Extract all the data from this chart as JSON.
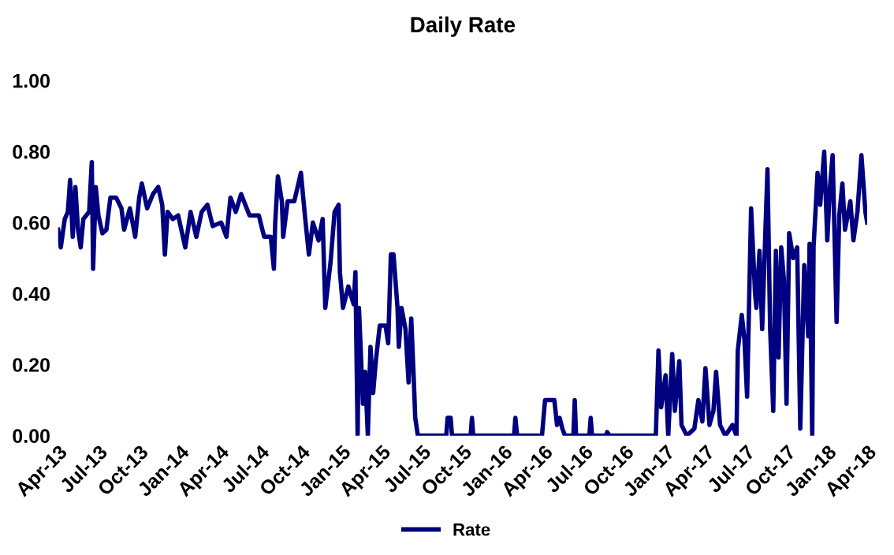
{
  "chart_data": {
    "type": "line",
    "title": "Daily Rate",
    "x": [
      "2013-04-01",
      "2013-04-07",
      "2013-04-16",
      "2013-04-23",
      "2013-04-28",
      "2013-05-04",
      "2013-05-10",
      "2013-05-16",
      "2013-05-22",
      "2013-05-28",
      "2013-06-10",
      "2013-06-16",
      "2013-06-19",
      "2013-06-25",
      "2013-07-01",
      "2013-07-10",
      "2013-07-19",
      "2013-07-28",
      "2013-08-10",
      "2013-08-22",
      "2013-08-28",
      "2013-09-10",
      "2013-09-22",
      "2013-10-01",
      "2013-10-07",
      "2013-10-19",
      "2013-11-01",
      "2013-11-13",
      "2013-11-22",
      "2013-11-28",
      "2013-12-04",
      "2013-12-16",
      "2013-12-28",
      "2014-01-13",
      "2014-01-25",
      "2014-02-07",
      "2014-02-19",
      "2014-03-04",
      "2014-03-16",
      "2014-04-04",
      "2014-04-16",
      "2014-04-25",
      "2014-05-07",
      "2014-05-19",
      "2014-06-07",
      "2014-06-28",
      "2014-07-10",
      "2014-07-25",
      "2014-08-01",
      "2014-08-04",
      "2014-08-10",
      "2014-08-19",
      "2014-08-22",
      "2014-09-01",
      "2014-09-16",
      "2014-10-01",
      "2014-10-10",
      "2014-10-19",
      "2014-10-28",
      "2014-11-10",
      "2014-11-19",
      "2014-11-25",
      "2014-12-07",
      "2014-12-16",
      "2014-12-25",
      "2014-12-28",
      "2015-01-04",
      "2015-01-16",
      "2015-01-28",
      "2015-02-01",
      "2015-02-06",
      "2015-02-09",
      "2015-02-18",
      "2015-02-23",
      "2015-03-01",
      "2015-03-07",
      "2015-03-13",
      "2015-03-19",
      "2015-03-28",
      "2015-04-10",
      "2015-04-16",
      "2015-04-22",
      "2015-04-28",
      "2015-05-07",
      "2015-05-10",
      "2015-05-16",
      "2015-05-25",
      "2015-06-01",
      "2015-06-07",
      "2015-06-13",
      "2015-06-16",
      "2015-06-22",
      "2015-08-25",
      "2015-08-28",
      "2015-09-04",
      "2015-09-07",
      "2015-10-19",
      "2015-10-22",
      "2015-10-25",
      "2016-01-25",
      "2016-01-28",
      "2016-02-01",
      "2016-03-28",
      "2016-04-04",
      "2016-04-25",
      "2016-05-01",
      "2016-05-07",
      "2016-05-13",
      "2016-05-19",
      "2016-06-07",
      "2016-06-10",
      "2016-06-13",
      "2016-07-13",
      "2016-07-16",
      "2016-07-19",
      "2016-08-19",
      "2016-08-22",
      "2016-08-28",
      "2016-12-10",
      "2016-12-16",
      "2016-12-22",
      "2017-01-01",
      "2017-01-07",
      "2017-01-16",
      "2017-01-22",
      "2017-02-01",
      "2017-02-06",
      "2017-02-18",
      "2017-03-07",
      "2017-03-16",
      "2017-03-25",
      "2017-04-01",
      "2017-04-10",
      "2017-04-19",
      "2017-04-25",
      "2017-05-04",
      "2017-05-16",
      "2017-06-01",
      "2017-06-10",
      "2017-06-13",
      "2017-06-22",
      "2017-06-28",
      "2017-07-04",
      "2017-07-13",
      "2017-07-22",
      "2017-07-25",
      "2017-08-01",
      "2017-08-07",
      "2017-08-16",
      "2017-08-19",
      "2017-08-25",
      "2017-09-01",
      "2017-09-07",
      "2017-09-13",
      "2017-09-19",
      "2017-09-25",
      "2017-10-01",
      "2017-10-07",
      "2017-10-16",
      "2017-10-25",
      "2017-11-01",
      "2017-11-10",
      "2017-11-19",
      "2017-11-22",
      "2017-11-28",
      "2017-12-01",
      "2017-12-10",
      "2017-12-16",
      "2017-12-25",
      "2018-01-01",
      "2018-01-07",
      "2018-01-13",
      "2018-01-22",
      "2018-01-28",
      "2018-02-04",
      "2018-02-10",
      "2018-02-22",
      "2018-03-01",
      "2018-03-10",
      "2018-03-19",
      "2018-03-28",
      "2018-04-01"
    ],
    "series": [
      {
        "name": "Rate",
        "color": "#000080",
        "values": [
          0.58,
          0.53,
          0.61,
          0.63,
          0.72,
          0.56,
          0.7,
          0.58,
          0.53,
          0.61,
          0.63,
          0.77,
          0.47,
          0.7,
          0.62,
          0.57,
          0.58,
          0.67,
          0.67,
          0.64,
          0.58,
          0.64,
          0.56,
          0.67,
          0.71,
          0.64,
          0.68,
          0.7,
          0.65,
          0.51,
          0.63,
          0.61,
          0.62,
          0.53,
          0.63,
          0.56,
          0.63,
          0.65,
          0.59,
          0.6,
          0.56,
          0.67,
          0.63,
          0.68,
          0.62,
          0.62,
          0.56,
          0.56,
          0.47,
          0.6,
          0.73,
          0.66,
          0.56,
          0.66,
          0.66,
          0.74,
          0.62,
          0.51,
          0.6,
          0.55,
          0.61,
          0.36,
          0.49,
          0.63,
          0.65,
          0.46,
          0.36,
          0.42,
          0.37,
          0.46,
          0.0,
          0.36,
          0.09,
          0.18,
          0.0,
          0.25,
          0.12,
          0.21,
          0.31,
          0.31,
          0.26,
          0.51,
          0.51,
          0.36,
          0.25,
          0.36,
          0.3,
          0.15,
          0.33,
          0.15,
          0.05,
          0.0,
          0.0,
          0.05,
          0.05,
          0.0,
          0.0,
          0.05,
          0.0,
          0.0,
          0.05,
          0.0,
          0.0,
          0.1,
          0.1,
          0.03,
          0.05,
          0.02,
          0.0,
          0.0,
          0.1,
          0.0,
          0.0,
          0.05,
          0.0,
          0.0,
          0.01,
          0.0,
          0.0,
          0.24,
          0.08,
          0.17,
          0.0,
          0.23,
          0.07,
          0.21,
          0.03,
          0.0,
          0.02,
          0.1,
          0.04,
          0.19,
          0.03,
          0.07,
          0.18,
          0.03,
          0.0,
          0.03,
          0.0,
          0.24,
          0.34,
          0.27,
          0.11,
          0.64,
          0.4,
          0.36,
          0.52,
          0.3,
          0.64,
          0.75,
          0.3,
          0.07,
          0.52,
          0.22,
          0.53,
          0.44,
          0.09,
          0.57,
          0.5,
          0.53,
          0.02,
          0.48,
          0.28,
          0.54,
          0.0,
          0.53,
          0.74,
          0.65,
          0.8,
          0.55,
          0.7,
          0.79,
          0.32,
          0.62,
          0.71,
          0.58,
          0.66,
          0.55,
          0.63,
          0.79,
          0.63,
          0.6
        ]
      }
    ],
    "xlim": [
      "2013-04-01",
      "2018-04-01"
    ],
    "xticks": [
      {
        "value": "2013-04-01",
        "label": "Apr-13"
      },
      {
        "value": "2013-07-01",
        "label": "Jul-13"
      },
      {
        "value": "2013-10-01",
        "label": "Oct-13"
      },
      {
        "value": "2014-01-01",
        "label": "Jan-14"
      },
      {
        "value": "2014-04-01",
        "label": "Apr-14"
      },
      {
        "value": "2014-07-01",
        "label": "Jul-14"
      },
      {
        "value": "2014-10-01",
        "label": "Oct-14"
      },
      {
        "value": "2015-01-01",
        "label": "Jan-15"
      },
      {
        "value": "2015-04-01",
        "label": "Apr-15"
      },
      {
        "value": "2015-07-01",
        "label": "Jul-15"
      },
      {
        "value": "2015-10-01",
        "label": "Oct-15"
      },
      {
        "value": "2016-01-01",
        "label": "Jan-16"
      },
      {
        "value": "2016-04-01",
        "label": "Apr-16"
      },
      {
        "value": "2016-07-01",
        "label": "Jul-16"
      },
      {
        "value": "2016-10-01",
        "label": "Oct-16"
      },
      {
        "value": "2017-01-01",
        "label": "Jan-17"
      },
      {
        "value": "2017-04-01",
        "label": "Apr-17"
      },
      {
        "value": "2017-07-01",
        "label": "Jul-17"
      },
      {
        "value": "2017-10-01",
        "label": "Oct-17"
      },
      {
        "value": "2018-01-01",
        "label": "Jan-18"
      },
      {
        "value": "2018-04-01",
        "label": "Apr-18"
      }
    ],
    "ylim": [
      0,
      1
    ],
    "yticks": [
      {
        "value": 0,
        "label": "0.00"
      },
      {
        "value": 0.2,
        "label": "0.20"
      },
      {
        "value": 0.4,
        "label": "0.40"
      },
      {
        "value": 0.6,
        "label": "0.60"
      },
      {
        "value": 0.8,
        "label": "0.80"
      },
      {
        "value": 1,
        "label": "1.00"
      }
    ],
    "legend": "bottom",
    "grid": false,
    "marker": "none",
    "line_style": "solid"
  }
}
